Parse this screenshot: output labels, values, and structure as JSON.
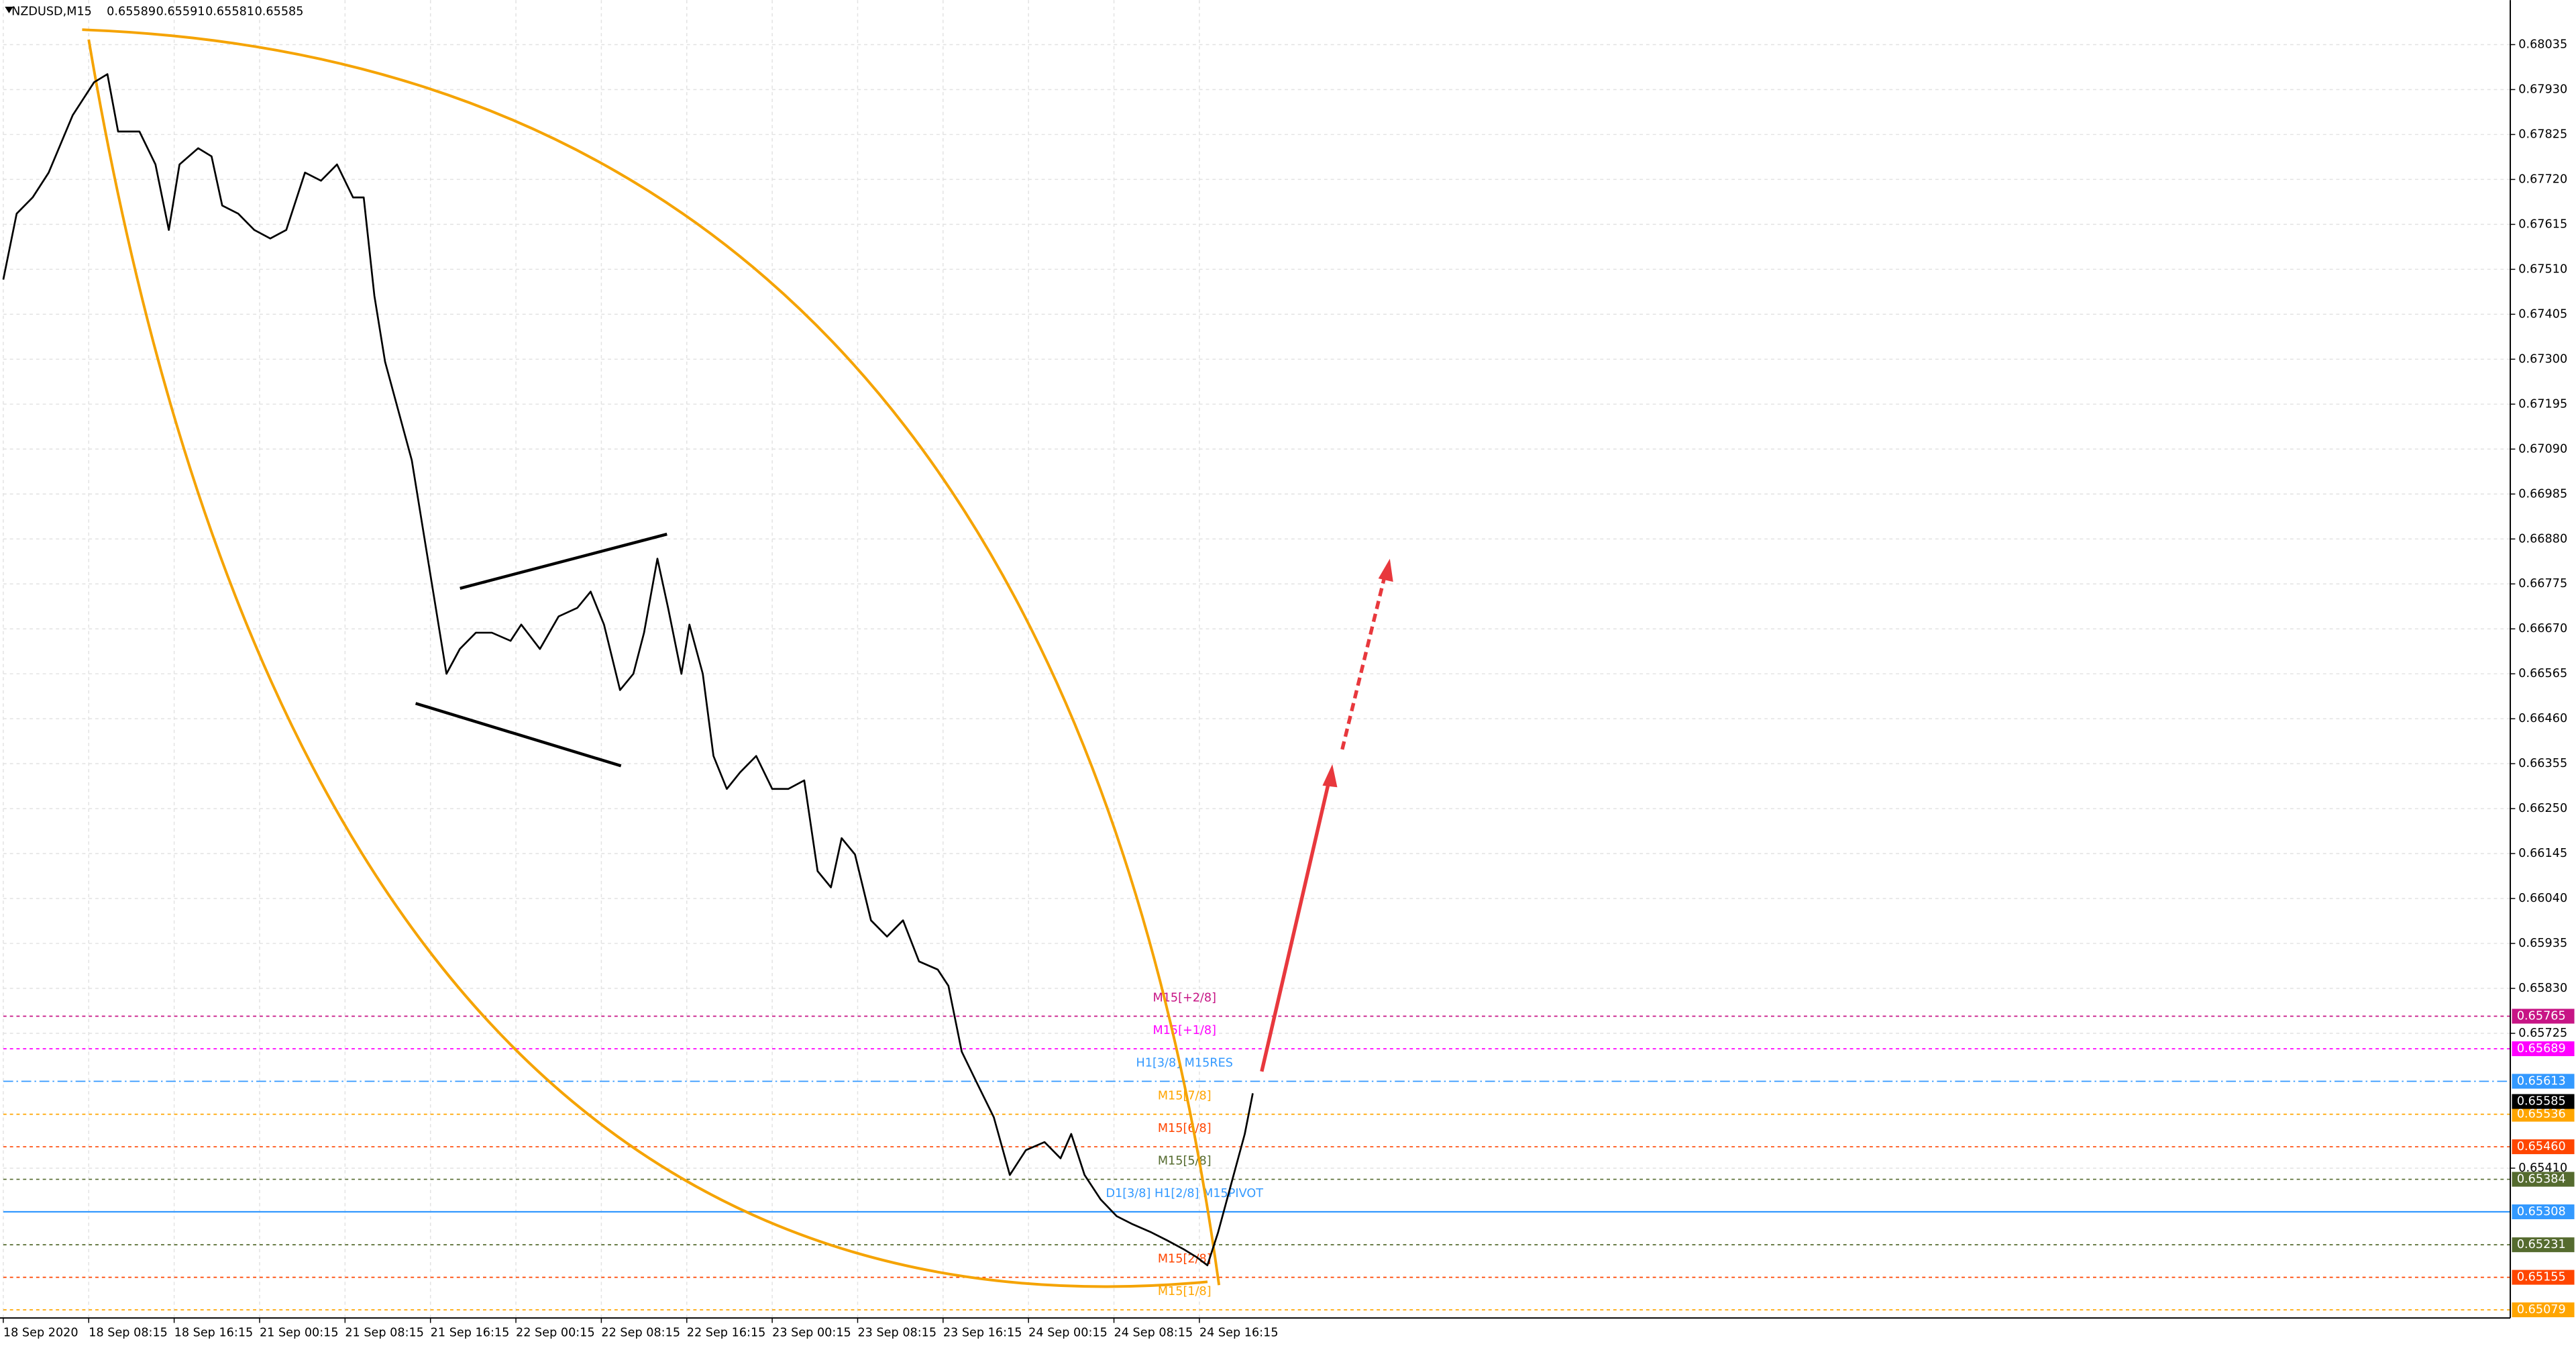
{
  "chart_data": {
    "type": "line",
    "title": "NZDUSD,M15",
    "ohlc": [
      0.65589,
      0.65591,
      0.65581,
      0.65585
    ],
    "x": [
      0,
      5,
      11,
      17,
      26,
      34,
      39,
      43,
      51,
      57,
      62,
      66,
      73,
      78,
      82,
      88,
      94,
      100,
      106,
      113,
      119,
      125,
      131,
      135,
      139,
      143,
      148,
      153,
      158,
      162,
      166,
      171,
      177,
      183,
      190,
      194,
      201,
      208,
      215,
      220,
      225,
      231,
      236,
      240,
      245,
      249,
      254,
      257,
      262,
      266,
      271,
      276,
      282,
      288,
      294,
      300,
      305,
      310,
      314,
      319,
      325,
      331,
      337,
      343,
      350,
      354,
      359,
      365,
      371,
      377,
      383,
      390,
      396,
      400,
      405,
      411,
      417,
      423,
      430,
      436,
      442,
      447,
      451,
      455,
      460,
      465,
      468
    ],
    "series": [
      {
        "color": "#000000",
        "values": [
          0.67486,
          0.6764,
          0.67678,
          0.67736,
          0.6787,
          0.67947,
          0.67966,
          0.67832,
          0.67832,
          0.67755,
          0.67602,
          0.67755,
          0.67793,
          0.67774,
          0.67659,
          0.6764,
          0.67602,
          0.67582,
          0.67602,
          0.67736,
          0.67717,
          0.67755,
          0.67678,
          0.67678,
          0.67448,
          0.67294,
          0.67179,
          0.67064,
          0.66872,
          0.66719,
          0.66565,
          0.66623,
          0.66661,
          0.66661,
          0.66642,
          0.6668,
          0.66623,
          0.66699,
          0.66719,
          0.66757,
          0.6668,
          0.66527,
          0.66565,
          0.66661,
          0.66834,
          0.66719,
          0.66565,
          0.6668,
          0.66565,
          0.66373,
          0.66296,
          0.66335,
          0.66373,
          0.66296,
          0.66296,
          0.66316,
          0.66104,
          0.66066,
          0.66181,
          0.66143,
          0.65989,
          0.65951,
          0.65989,
          0.65893,
          0.65874,
          0.65836,
          0.65682,
          0.65605,
          0.65529,
          0.65394,
          0.65452,
          0.65471,
          0.65433,
          0.6549,
          0.65394,
          0.65337,
          0.65298,
          0.65279,
          0.6526,
          0.65241,
          0.65221,
          0.65202,
          0.65183,
          0.6526,
          0.65375,
          0.6549,
          0.65585
        ]
      }
    ],
    "xlim": [
      0,
      939
    ],
    "xticks": [
      {
        "value": 0,
        "label": "18 Sep 2020"
      },
      {
        "value": 32,
        "label": "18 Sep 08:15"
      },
      {
        "value": 64,
        "label": "18 Sep 16:15"
      },
      {
        "value": 96,
        "label": "21 Sep 00:15"
      },
      {
        "value": 128,
        "label": "21 Sep 08:15"
      },
      {
        "value": 160,
        "label": "21 Sep 16:15"
      },
      {
        "value": 192,
        "label": "22 Sep 00:15"
      },
      {
        "value": 224,
        "label": "22 Sep 08:15"
      },
      {
        "value": 256,
        "label": "22 Sep 16:15"
      },
      {
        "value": 288,
        "label": "23 Sep 00:15"
      },
      {
        "value": 320,
        "label": "23 Sep 08:15"
      },
      {
        "value": 352,
        "label": "23 Sep 16:15"
      },
      {
        "value": 384,
        "label": "24 Sep 00:15"
      },
      {
        "value": 416,
        "label": "24 Sep 08:15"
      },
      {
        "value": 448,
        "label": "24 Sep 16:15"
      }
    ],
    "ylim": [
      0.6506,
      0.68139
    ],
    "yticks": [
      0.68035,
      {
        "value": 0.6793,
        "label": "0.67930"
      },
      0.67825,
      {
        "value": 0.6772,
        "label": "0.67720"
      },
      0.67615,
      {
        "value": 0.6751,
        "label": "0.67510"
      },
      0.67405,
      {
        "value": 0.673,
        "label": "0.67300"
      },
      0.67195,
      {
        "value": 0.6709,
        "label": "0.67090"
      },
      0.66985,
      {
        "value": 0.6688,
        "label": "0.66880"
      },
      0.66775,
      {
        "value": 0.6667,
        "label": "0.66670"
      },
      0.66565,
      {
        "value": 0.6646,
        "label": "0.66460"
      },
      0.66355,
      {
        "value": 0.6625,
        "label": "0.66250"
      },
      0.66145,
      {
        "value": 0.6604,
        "label": "0.66040"
      },
      0.65935,
      {
        "value": 0.6583,
        "label": "0.65830"
      },
      0.65725,
      {
        "value": 0.6541,
        "label": "0.65410"
      }
    ],
    "grid": true,
    "levels": [
      {
        "name": "M15[+2/8]",
        "value": 0.65765,
        "color": "#c71585",
        "style": "dotted"
      },
      {
        "name": "M15[+1/8]",
        "value": 0.65689,
        "color": "#ff00ff",
        "style": "dotted"
      },
      {
        "name": "H1[3/8] M15RES",
        "value": 0.65613,
        "color": "#3399ff",
        "style": "dashdot"
      },
      {
        "name": "M15[7/8]",
        "value": 0.65536,
        "color": "#ffa500",
        "style": "dotted"
      },
      {
        "name": "M15[6/8]",
        "value": 0.6546,
        "value_label": "0.65460",
        "color": "#ff4500",
        "style": "dotted"
      },
      {
        "name": "M15[5/8]",
        "value": 0.65384,
        "color": "#556b2f",
        "style": "dotted"
      },
      {
        "name": "D1[3/8] H1[2/8] M15PIVOT",
        "value": 0.65308,
        "color": "#3399ff",
        "style": "solid"
      },
      {
        "value": 0.65231,
        "color": "#556b2f",
        "style": "dotted"
      },
      {
        "name": "M15[2/8]",
        "value": 0.65155,
        "color": "#ff4500",
        "style": "dotted"
      },
      {
        "name": "M15[1/8]",
        "value": 0.65079,
        "color": "#ffa500",
        "style": "dotted"
      }
    ]
  }
}
